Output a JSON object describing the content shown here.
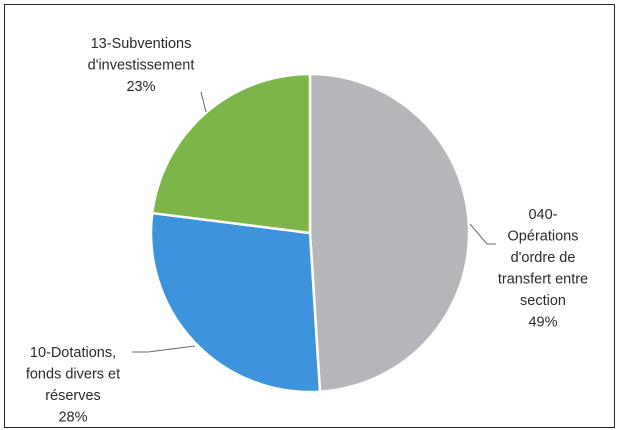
{
  "chart_data": {
    "type": "pie",
    "slices": [
      {
        "label_lines": [
          "040-",
          "Opérations",
          "d'ordre de",
          "transfert entre",
          "section"
        ],
        "value": 49,
        "value_text": "49%",
        "color": "#b6b6ba"
      },
      {
        "label_lines": [
          "10-Dotations,",
          "fonds divers et",
          "réserves"
        ],
        "value": 28,
        "value_text": "28%",
        "color": "#3d93dc"
      },
      {
        "label_lines": [
          "13-Subventions",
          "d'investissement"
        ],
        "value": 23,
        "value_text": "23%",
        "color": "#7db648"
      }
    ]
  }
}
